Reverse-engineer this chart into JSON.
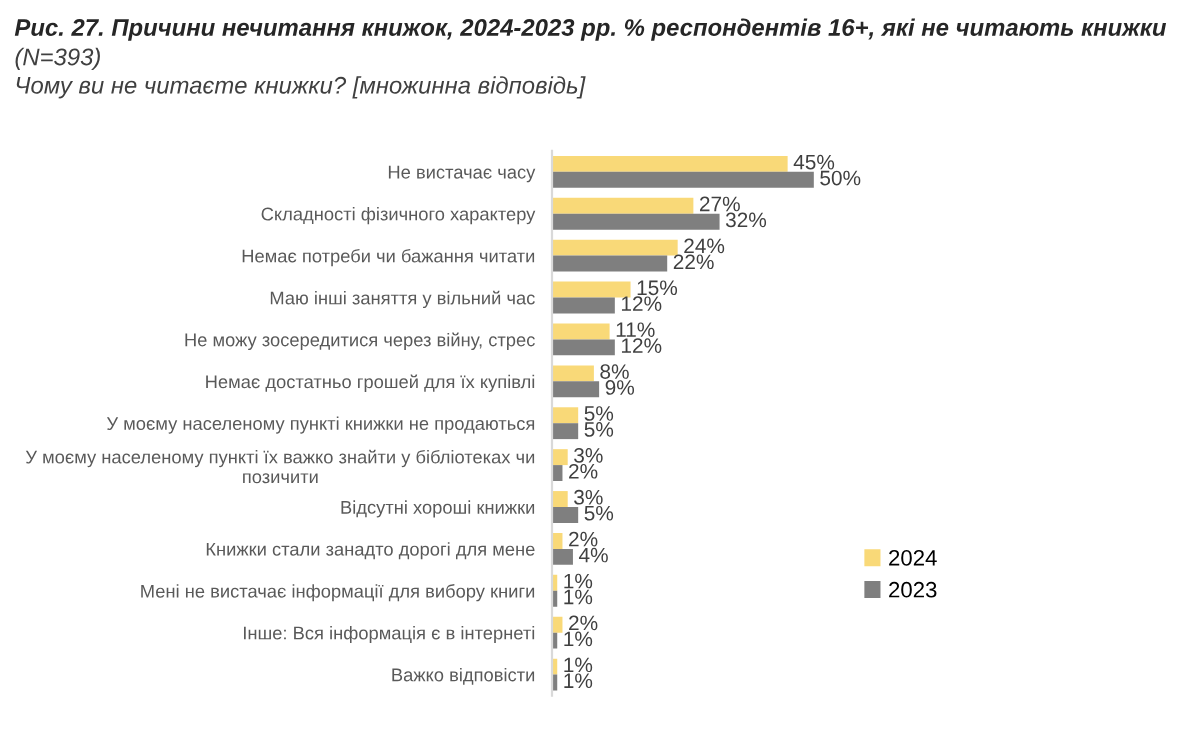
{
  "chart_data": {
    "type": "bar",
    "orientation": "horizontal",
    "title": "Рис. 27. Причини нечитання книжок, 2024-2023 рр. % респондентів 16+, які не читають книжки",
    "subtitle": "(N=393)\nЧому ви не читаєте книжки? [множинна відповідь]",
    "categories": [
      "Не вистачає часу",
      "Складності фізичного характеру",
      "Немає потреби чи бажання читати",
      "Маю інші заняття у вільний час",
      "Не можу зосередитися через війну, стрес",
      "Немає достатньо грошей для їх купівлі",
      "У моєму населеному пункті книжки не продаються",
      "У моєму населеному пункті їх важко знайти у бібліотеках чи\nпозичити",
      "Відсутні хороші книжки",
      "Книжки стали занадто дорогі для мене",
      "Мені не вистачає інформації для вибору книги",
      "Інше: Вся інформація є в інтернеті",
      "Важко відповісти"
    ],
    "series": [
      {
        "name": "2024",
        "color": "#f9d978",
        "values": [
          45,
          27,
          24,
          15,
          11,
          8,
          5,
          3,
          3,
          2,
          1,
          2,
          1
        ],
        "value_labels": [
          "45%",
          "27%",
          "24%",
          "15%",
          "11%",
          "8%",
          "5%",
          "3%",
          "3%",
          "2%",
          "1%",
          "2%",
          "1%"
        ]
      },
      {
        "name": "2023",
        "color": "#7f7f7f",
        "values": [
          50,
          32,
          22,
          12,
          12,
          9,
          5,
          2,
          5,
          4,
          1,
          1,
          1
        ],
        "value_labels": [
          "50%",
          "32%",
          "22%",
          "12%",
          "12%",
          "9%",
          "5%",
          "2%",
          "5%",
          "4%",
          "1%",
          "1%",
          "1%"
        ]
      }
    ],
    "relative": false,
    "legend": "right",
    "grid": false
  }
}
